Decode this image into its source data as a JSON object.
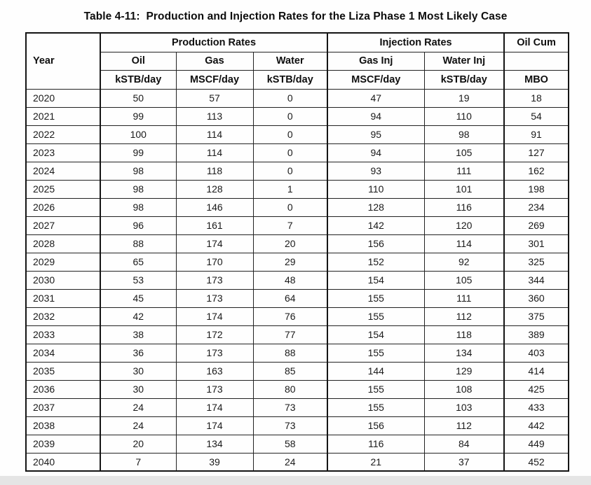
{
  "page": {
    "title": "Table 4-11:  Production and Injection Rates for the Liza Phase 1 Most Likely Case"
  },
  "chart_data": {
    "type": "table",
    "title": "Table 4-11:  Production and Injection Rates for the Liza Phase 1 Most Likely Case",
    "column_groups": [
      "Production Rates",
      "Injection Rates",
      "Oil Cum"
    ],
    "columns": [
      "Year",
      "Oil kSTB/day",
      "Gas MSCF/day",
      "Water kSTB/day",
      "Gas Inj MSCF/day",
      "Water Inj kSTB/day",
      "Oil Cum MBO"
    ]
  },
  "table": {
    "year_header": "Year",
    "group_headers": [
      "Production Rates",
      "Injection Rates",
      "Oil Cum"
    ],
    "sub_headers": [
      "Oil",
      "Gas",
      "Water",
      "Gas Inj",
      "Water Inj",
      ""
    ],
    "unit_headers": [
      "kSTB/day",
      "MSCF/day",
      "kSTB/day",
      "MSCF/day",
      "kSTB/day",
      "MBO"
    ],
    "rows": [
      [
        "2020",
        "50",
        "57",
        "0",
        "47",
        "19",
        "18"
      ],
      [
        "2021",
        "99",
        "113",
        "0",
        "94",
        "110",
        "54"
      ],
      [
        "2022",
        "100",
        "114",
        "0",
        "95",
        "98",
        "91"
      ],
      [
        "2023",
        "99",
        "114",
        "0",
        "94",
        "105",
        "127"
      ],
      [
        "2024",
        "98",
        "118",
        "0",
        "93",
        "111",
        "162"
      ],
      [
        "2025",
        "98",
        "128",
        "1",
        "110",
        "101",
        "198"
      ],
      [
        "2026",
        "98",
        "146",
        "0",
        "128",
        "116",
        "234"
      ],
      [
        "2027",
        "96",
        "161",
        "7",
        "142",
        "120",
        "269"
      ],
      [
        "2028",
        "88",
        "174",
        "20",
        "156",
        "114",
        "301"
      ],
      [
        "2029",
        "65",
        "170",
        "29",
        "152",
        "92",
        "325"
      ],
      [
        "2030",
        "53",
        "173",
        "48",
        "154",
        "105",
        "344"
      ],
      [
        "2031",
        "45",
        "173",
        "64",
        "155",
        "111",
        "360"
      ],
      [
        "2032",
        "42",
        "174",
        "76",
        "155",
        "112",
        "375"
      ],
      [
        "2033",
        "38",
        "172",
        "77",
        "154",
        "118",
        "389"
      ],
      [
        "2034",
        "36",
        "173",
        "88",
        "155",
        "134",
        "403"
      ],
      [
        "2035",
        "30",
        "163",
        "85",
        "144",
        "129",
        "414"
      ],
      [
        "2036",
        "30",
        "173",
        "80",
        "155",
        "108",
        "425"
      ],
      [
        "2037",
        "24",
        "174",
        "73",
        "155",
        "103",
        "433"
      ],
      [
        "2038",
        "24",
        "174",
        "73",
        "156",
        "112",
        "442"
      ],
      [
        "2039",
        "20",
        "134",
        "58",
        "116",
        "84",
        "449"
      ],
      [
        "2040",
        "7",
        "39",
        "24",
        "21",
        "37",
        "452"
      ]
    ]
  }
}
